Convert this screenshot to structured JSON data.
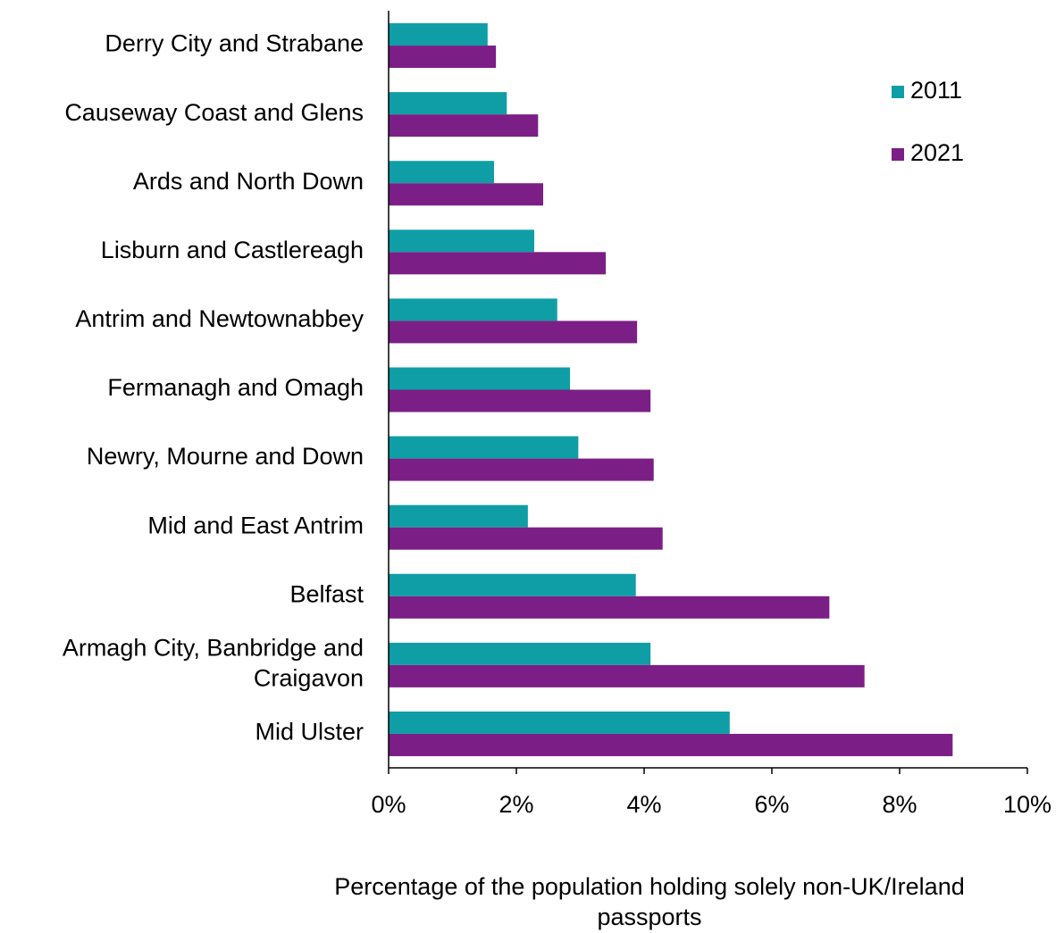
{
  "chart_data": {
    "type": "barh",
    "categories": [
      "Derry City and Strabane",
      "Causeway Coast and Glens",
      "Ards and North Down",
      "Lisburn and Castlereagh",
      "Antrim and Newtownabbey",
      "Fermanagh and Omagh",
      "Newry, Mourne and Down",
      "Mid and East Antrim",
      "Belfast",
      "Armagh City, Banbridge and Craigavon",
      "Mid Ulster"
    ],
    "series": [
      {
        "name": "2011",
        "color": "#0f9ea6",
        "values": [
          1.55,
          1.85,
          1.65,
          2.28,
          2.64,
          2.84,
          2.97,
          2.18,
          3.87,
          4.1,
          5.34
        ]
      },
      {
        "name": "2021",
        "color": "#7b1f86",
        "values": [
          1.68,
          2.34,
          2.42,
          3.4,
          3.89,
          4.1,
          4.15,
          4.29,
          6.9,
          7.45,
          8.83
        ]
      }
    ],
    "xlabel": "Percentage of the population holding solely non-UK/Ireland passports",
    "xlim": [
      0,
      10
    ],
    "xticks": [
      {
        "value": 0,
        "label": "0%"
      },
      {
        "value": 2,
        "label": "2%"
      },
      {
        "value": 4,
        "label": "4%"
      },
      {
        "value": 6,
        "label": "6%"
      },
      {
        "value": 8,
        "label": "8%"
      },
      {
        "value": 10,
        "label": "10%"
      }
    ],
    "legend": "upper right",
    "grid": false
  }
}
